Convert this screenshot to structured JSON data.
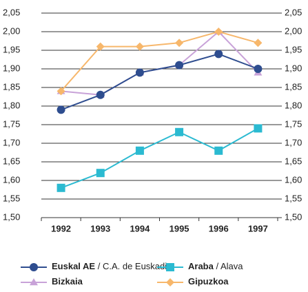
{
  "chart_data": {
    "type": "line",
    "categories": [
      "1992",
      "1993",
      "1994",
      "1995",
      "1996",
      "1997"
    ],
    "series": [
      {
        "name": "Euskal AE / C.A. de Euskadi",
        "color": "#2e4d8f",
        "marker": "circle",
        "values": [
          1.79,
          1.83,
          1.89,
          1.91,
          1.94,
          1.9
        ]
      },
      {
        "name": "Araba / Alava",
        "color": "#2bbad1",
        "marker": "square",
        "values": [
          1.58,
          1.62,
          1.68,
          1.73,
          1.68,
          1.74
        ]
      },
      {
        "name": "Bizkaia",
        "color": "#c8a2d8",
        "marker": "triangle",
        "values": [
          1.84,
          1.83,
          1.89,
          1.91,
          2.0,
          1.89
        ]
      },
      {
        "name": "Gipuzkoa",
        "color": "#f7b76b",
        "marker": "diamond",
        "values": [
          1.84,
          1.96,
          1.96,
          1.97,
          2.0,
          1.97
        ]
      }
    ],
    "ylim": [
      1.5,
      2.05
    ],
    "yticks": [
      {
        "value": 1.5,
        "label": "1,50"
      },
      {
        "value": 1.55,
        "label": "1,55"
      },
      {
        "value": 1.6,
        "label": "1,60"
      },
      {
        "value": 1.65,
        "label": "1,65"
      },
      {
        "value": 1.7,
        "label": "1,70"
      },
      {
        "value": 1.75,
        "label": "1,75"
      },
      {
        "value": 1.8,
        "label": "1,80"
      },
      {
        "value": 1.85,
        "label": "1,85"
      },
      {
        "value": 1.9,
        "label": "1,90"
      },
      {
        "value": 1.95,
        "label": "1,95"
      },
      {
        "value": 2.0,
        "label": "2,00"
      },
      {
        "value": 2.05,
        "label": "2,05"
      }
    ],
    "y2lim": [
      1.5,
      2.05
    ],
    "y2ticks": [
      {
        "value": 1.5,
        "label": "1,50"
      },
      {
        "value": 1.55,
        "label": "1,55"
      },
      {
        "value": 1.6,
        "label": "1,60"
      },
      {
        "value": 1.65,
        "label": "1,65"
      },
      {
        "value": 1.7,
        "label": "1,70"
      },
      {
        "value": 1.75,
        "label": "1,75"
      },
      {
        "value": 1.8,
        "label": "1,80"
      },
      {
        "value": 1.85,
        "label": "1,85"
      },
      {
        "value": 1.9,
        "label": "1,90"
      },
      {
        "value": 1.95,
        "label": "1,95"
      },
      {
        "value": 2.0,
        "label": "2,00"
      },
      {
        "value": 2.05,
        "label": "2,05"
      }
    ],
    "grid": true
  }
}
